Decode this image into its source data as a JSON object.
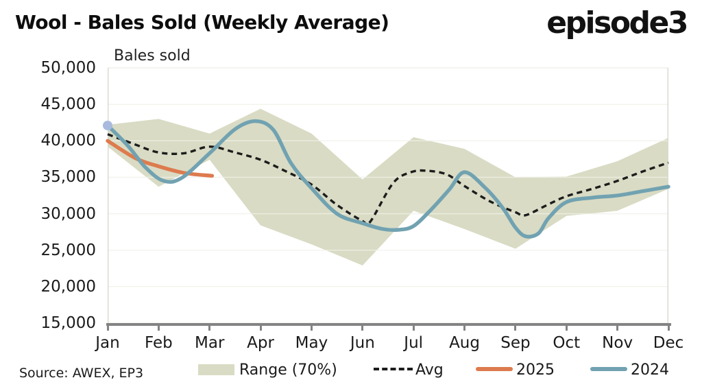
{
  "header": {
    "title": "Wool - Bales Sold (Weekly Average)",
    "logo_text": "episode3"
  },
  "footer": {
    "source": "Source: AWEX, EP3"
  },
  "legend": {
    "position": "bottom",
    "items": [
      {
        "label": "Range (70%)",
        "swatch": "band",
        "color": "#d9dbc4"
      },
      {
        "label": "Avg",
        "swatch": "dashed",
        "color": "#1c1c1c"
      },
      {
        "label": "2025",
        "swatch": "line",
        "color": "#dd7b4e"
      },
      {
        "label": "2024",
        "swatch": "line",
        "color": "#71a2b1"
      }
    ]
  },
  "chart_data": {
    "type": "line",
    "title": "Wool - Bales Sold (Weekly Average)",
    "axis_label": "Bales sold",
    "x_unit": "month_index (0 = Jan, 11 = Dec)",
    "y_unit": "bales",
    "x_categories": [
      "Jan",
      "Feb",
      "Mar",
      "Apr",
      "May",
      "Jun",
      "Jul",
      "Aug",
      "Sep",
      "Oct",
      "Nov",
      "Dec"
    ],
    "y_tick_labels": [
      "50,000",
      "45,000",
      "40,000",
      "35,000",
      "30,000",
      "25,000",
      "20,000",
      "15,000"
    ],
    "ylim": [
      15000,
      50000
    ],
    "y_tick_step": 5000,
    "grid": true,
    "colors": {
      "gridline": "#e7e7dd",
      "plot_border": "#d9d9d0",
      "axis_line": "#838383",
      "start_marker": "#a9bade"
    },
    "series": [
      {
        "name": "Range (70%)",
        "type": "band",
        "color": "#d9dbc4",
        "upper_by_month": [
          42200,
          43000,
          41000,
          44400,
          41000,
          34700,
          40500,
          38900,
          35000,
          35100,
          37200,
          40400
        ],
        "lower_by_month": [
          39200,
          33700,
          37400,
          28400,
          25800,
          22900,
          30400,
          27900,
          25200,
          29700,
          30400,
          33400
        ]
      },
      {
        "name": "Avg",
        "type": "line",
        "style": "dashed",
        "color": "#1c1c1c",
        "points": [
          [
            0,
            40900
          ],
          [
            0.5,
            39600
          ],
          [
            1,
            38400
          ],
          [
            1.5,
            38300
          ],
          [
            2,
            39200
          ],
          [
            2.5,
            38400
          ],
          [
            3,
            37400
          ],
          [
            3.5,
            35800
          ],
          [
            4,
            34000
          ],
          [
            4.5,
            31200
          ],
          [
            5,
            29000
          ],
          [
            5.15,
            28900
          ],
          [
            5.6,
            34200
          ],
          [
            5.95,
            35700
          ],
          [
            6.25,
            35900
          ],
          [
            6.65,
            35400
          ],
          [
            7,
            33800
          ],
          [
            7.5,
            31700
          ],
          [
            8,
            30200
          ],
          [
            8.2,
            29800
          ],
          [
            8.65,
            31300
          ],
          [
            9,
            32400
          ],
          [
            9.5,
            33400
          ],
          [
            10,
            34500
          ],
          [
            10.5,
            35800
          ],
          [
            11,
            37000
          ]
        ]
      },
      {
        "name": "2025",
        "type": "line",
        "style": "solid",
        "color": "#dd7b4e",
        "points": [
          [
            0,
            40000
          ],
          [
            0.55,
            37600
          ],
          [
            1,
            36500
          ],
          [
            1.5,
            35600
          ],
          [
            2.05,
            35200
          ]
        ]
      },
      {
        "name": "2024",
        "type": "line",
        "style": "solid",
        "color": "#71a2b1",
        "start_marker": {
          "x": 0,
          "value": 42100,
          "color": "#a9bade"
        },
        "points": [
          [
            0,
            42100
          ],
          [
            0.4,
            39300
          ],
          [
            0.75,
            36300
          ],
          [
            1.1,
            34500
          ],
          [
            1.45,
            34900
          ],
          [
            2,
            38300
          ],
          [
            2.5,
            41600
          ],
          [
            2.9,
            42700
          ],
          [
            3.25,
            41500
          ],
          [
            3.6,
            36900
          ],
          [
            4,
            33500
          ],
          [
            4.5,
            30000
          ],
          [
            5,
            28700
          ],
          [
            5.4,
            27900
          ],
          [
            5.7,
            27800
          ],
          [
            6,
            28300
          ],
          [
            6.35,
            30600
          ],
          [
            6.7,
            33300
          ],
          [
            7,
            35700
          ],
          [
            7.4,
            33600
          ],
          [
            7.75,
            30800
          ],
          [
            8,
            28100
          ],
          [
            8.2,
            26900
          ],
          [
            8.45,
            27300
          ],
          [
            8.65,
            29400
          ],
          [
            9,
            31600
          ],
          [
            9.5,
            32200
          ],
          [
            10,
            32500
          ],
          [
            10.5,
            33100
          ],
          [
            11,
            33700
          ]
        ]
      }
    ]
  }
}
